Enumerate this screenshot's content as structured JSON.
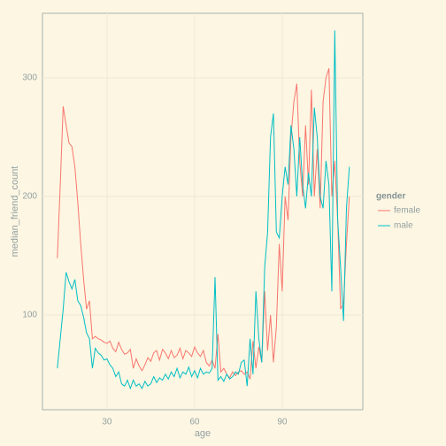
{
  "chart_data": {
    "type": "line",
    "xlabel": "age",
    "ylabel": "median_friend_count",
    "legend_title": "gender",
    "legend": "right",
    "grid": true,
    "x": [
      13,
      14,
      15,
      16,
      17,
      18,
      19,
      20,
      21,
      22,
      23,
      24,
      25,
      26,
      27,
      28,
      29,
      30,
      31,
      32,
      33,
      34,
      35,
      36,
      37,
      38,
      39,
      40,
      41,
      42,
      43,
      44,
      45,
      46,
      47,
      48,
      49,
      50,
      51,
      52,
      53,
      54,
      55,
      56,
      57,
      58,
      59,
      60,
      61,
      62,
      63,
      64,
      65,
      66,
      67,
      68,
      69,
      70,
      71,
      72,
      73,
      74,
      75,
      76,
      77,
      78,
      79,
      80,
      81,
      82,
      83,
      84,
      85,
      86,
      87,
      88,
      89,
      90,
      91,
      92,
      93,
      94,
      95,
      96,
      97,
      98,
      99,
      100,
      101,
      102,
      103,
      104,
      105,
      106,
      107,
      108,
      109,
      110,
      111,
      112,
      113
    ],
    "xlim": [
      7.9,
      117.6
    ],
    "xticks": [
      30,
      60,
      90
    ],
    "ylim": [
      20.1,
      354.5
    ],
    "yticks": [
      100,
      200,
      300
    ],
    "series": [
      {
        "name": "female",
        "color": "#F8766D",
        "values": [
          148,
          210,
          276,
          260,
          245,
          242,
          225,
          195,
          160,
          130,
          105,
          112,
          80,
          82,
          80,
          79,
          77,
          76,
          78,
          72,
          69,
          77,
          71,
          67,
          68,
          71,
          55,
          63,
          57,
          53,
          58,
          64,
          61,
          68,
          70,
          62,
          71,
          68,
          63,
          70,
          64,
          66,
          72,
          63,
          70,
          68,
          65,
          73,
          68,
          65,
          70,
          60,
          57,
          62,
          55,
          84,
          52,
          55,
          50,
          47,
          52,
          49,
          52,
          53,
          50,
          52,
          46,
          78,
          55,
          73,
          60,
          120,
          70,
          100,
          60,
          90,
          160,
          120,
          200,
          180,
          250,
          280,
          295,
          230,
          200,
          260,
          210,
          290,
          200,
          240,
          190,
          280,
          300,
          308,
          200,
          230,
          180,
          105,
          110,
          160,
          200
        ]
      },
      {
        "name": "male",
        "color": "#00BFC4",
        "values": [
          55,
          80,
          105,
          136,
          128,
          122,
          130,
          112,
          108,
          98,
          85,
          80,
          55,
          72,
          68,
          66,
          62,
          63,
          58,
          55,
          48,
          52,
          42,
          40,
          45,
          38,
          45,
          40,
          42,
          38,
          44,
          40,
          42,
          48,
          43,
          47,
          45,
          50,
          46,
          52,
          48,
          55,
          47,
          52,
          50,
          56,
          48,
          53,
          47,
          55,
          50,
          52,
          51,
          55,
          132,
          45,
          48,
          44,
          50,
          46,
          48,
          52,
          50,
          60,
          62,
          40,
          80,
          50,
          120,
          80,
          60,
          140,
          170,
          250,
          270,
          170,
          165,
          200,
          225,
          210,
          260,
          240,
          200,
          250,
          210,
          190,
          220,
          200,
          275,
          250,
          200,
          190,
          230,
          210,
          120,
          340,
          180,
          140,
          95,
          190,
          225
        ]
      }
    ]
  }
}
